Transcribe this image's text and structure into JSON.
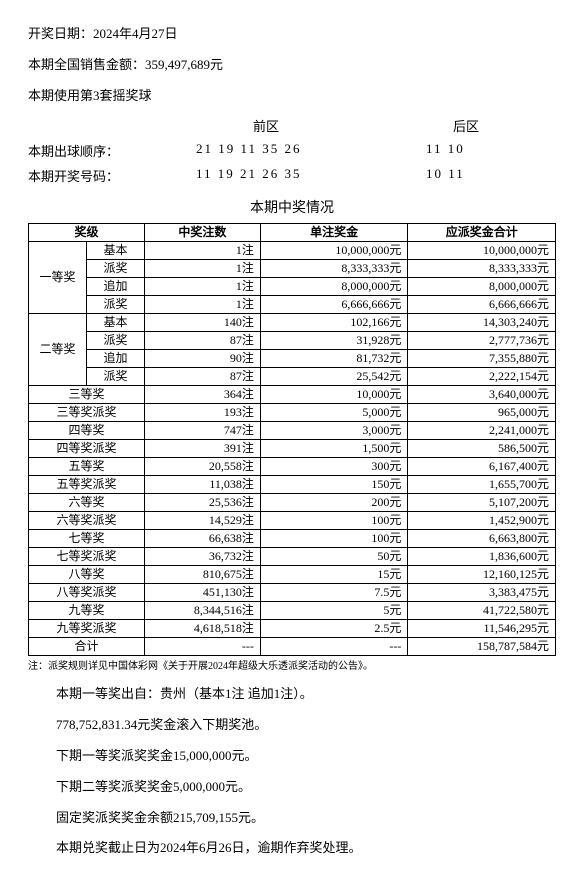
{
  "header": {
    "date_line": "开奖日期：2024年4月27日",
    "sales_line": "本期全国销售金额：359,497,689元",
    "ballset_line": "本期使用第3套摇奖球",
    "front_label": "前区",
    "back_label": "后区",
    "order_label": "本期出球顺序：",
    "order_front": "21 19 11 35 26",
    "order_back": "11 10",
    "win_label": "本期开奖号码：",
    "win_front": "11 19 21 26 35",
    "win_back": "10 11"
  },
  "table": {
    "title": "本期中奖情况",
    "cols": {
      "level": "奖级",
      "count": "中奖注数",
      "unit": "单注奖金",
      "total": "应派奖金合计"
    },
    "group1": {
      "name": "一等奖",
      "rows": [
        {
          "sub": "基本",
          "count": "1注",
          "unit": "10,000,000元",
          "total": "10,000,000元"
        },
        {
          "sub": "派奖",
          "count": "1注",
          "unit": "8,333,333元",
          "total": "8,333,333元"
        },
        {
          "sub": "追加",
          "count": "1注",
          "unit": "8,000,000元",
          "total": "8,000,000元"
        },
        {
          "sub": "派奖",
          "count": "1注",
          "unit": "6,666,666元",
          "total": "6,666,666元"
        }
      ]
    },
    "group2": {
      "name": "二等奖",
      "rows": [
        {
          "sub": "基本",
          "count": "140注",
          "unit": "102,166元",
          "total": "14,303,240元"
        },
        {
          "sub": "派奖",
          "count": "87注",
          "unit": "31,928元",
          "total": "2,777,736元"
        },
        {
          "sub": "追加",
          "count": "90注",
          "unit": "81,732元",
          "total": "7,355,880元"
        },
        {
          "sub": "派奖",
          "count": "87注",
          "unit": "25,542元",
          "total": "2,222,154元"
        }
      ]
    },
    "flat": [
      {
        "name": "三等奖",
        "count": "364注",
        "unit": "10,000元",
        "total": "3,640,000元"
      },
      {
        "name": "三等奖派奖",
        "count": "193注",
        "unit": "5,000元",
        "total": "965,000元"
      },
      {
        "name": "四等奖",
        "count": "747注",
        "unit": "3,000元",
        "total": "2,241,000元"
      },
      {
        "name": "四等奖派奖",
        "count": "391注",
        "unit": "1,500元",
        "total": "586,500元"
      },
      {
        "name": "五等奖",
        "count": "20,558注",
        "unit": "300元",
        "total": "6,167,400元"
      },
      {
        "name": "五等奖派奖",
        "count": "11,038注",
        "unit": "150元",
        "total": "1,655,700元"
      },
      {
        "name": "六等奖",
        "count": "25,536注",
        "unit": "200元",
        "total": "5,107,200元"
      },
      {
        "name": "六等奖派奖",
        "count": "14,529注",
        "unit": "100元",
        "total": "1,452,900元"
      },
      {
        "name": "七等奖",
        "count": "66,638注",
        "unit": "100元",
        "total": "6,663,800元"
      },
      {
        "name": "七等奖派奖",
        "count": "36,732注",
        "unit": "50元",
        "total": "1,836,600元"
      },
      {
        "name": "八等奖",
        "count": "810,675注",
        "unit": "15元",
        "total": "12,160,125元"
      },
      {
        "name": "八等奖派奖",
        "count": "451,130注",
        "unit": "7.5元",
        "total": "3,383,475元"
      },
      {
        "name": "九等奖",
        "count": "8,344,516注",
        "unit": "5元",
        "total": "41,722,580元"
      },
      {
        "name": "九等奖派奖",
        "count": "4,618,518注",
        "unit": "2.5元",
        "total": "11,546,295元"
      }
    ],
    "sum": {
      "name": "合计",
      "count": "---",
      "unit": "---",
      "total": "158,787,584元"
    }
  },
  "footnote": "注：派奖规则详见中国体彩网《关于开展2024年超级大乐透派奖活动的公告》。",
  "paras": [
    "本期一等奖出自：贵州（基本1注 追加1注）。",
    "778,752,831.34元奖金滚入下期奖池。",
    "下期一等奖派奖奖金15,000,000元。",
    "下期二等奖派奖奖金5,000,000元。",
    "固定奖派奖奖金余额215,709,155元。",
    "本期兑奖截止日为2024年6月26日，逾期作弃奖处理。"
  ]
}
